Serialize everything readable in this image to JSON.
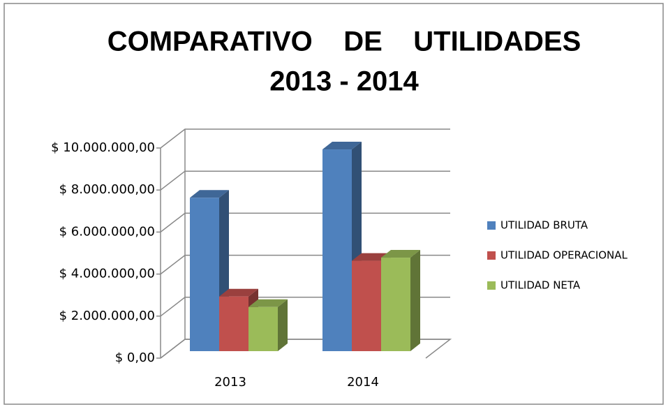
{
  "chart_data": {
    "type": "bar3d",
    "title": "COMPARATIVO    DE    UTILIDADES",
    "subtitle": "2013 - 2014",
    "categories": [
      "2013",
      "2014"
    ],
    "series": [
      {
        "name": "UTILIDAD BRUTA",
        "color": "#4f81bd",
        "values": [
          7300000,
          9600000
        ]
      },
      {
        "name": "UTILIDAD OPERACIONAL",
        "color": "#c0504d",
        "values": [
          2600000,
          4300000
        ]
      },
      {
        "name": "UTILIDAD NETA",
        "color": "#9bbb59",
        "values": [
          2100000,
          4450000
        ]
      }
    ],
    "ylim": [
      0,
      10000000
    ],
    "yticks": [
      {
        "value": 0,
        "label": "$ 0,00"
      },
      {
        "value": 2000000,
        "label": "$ 2.000.000,00"
      },
      {
        "value": 4000000,
        "label": "$ 4.000.000,00"
      },
      {
        "value": 6000000,
        "label": "$ 6.000.000,00"
      },
      {
        "value": 8000000,
        "label": "$ 8.000.000,00"
      },
      {
        "value": 10000000,
        "label": "$ 10.000.000,00"
      }
    ],
    "grid": true,
    "legend": "right"
  }
}
